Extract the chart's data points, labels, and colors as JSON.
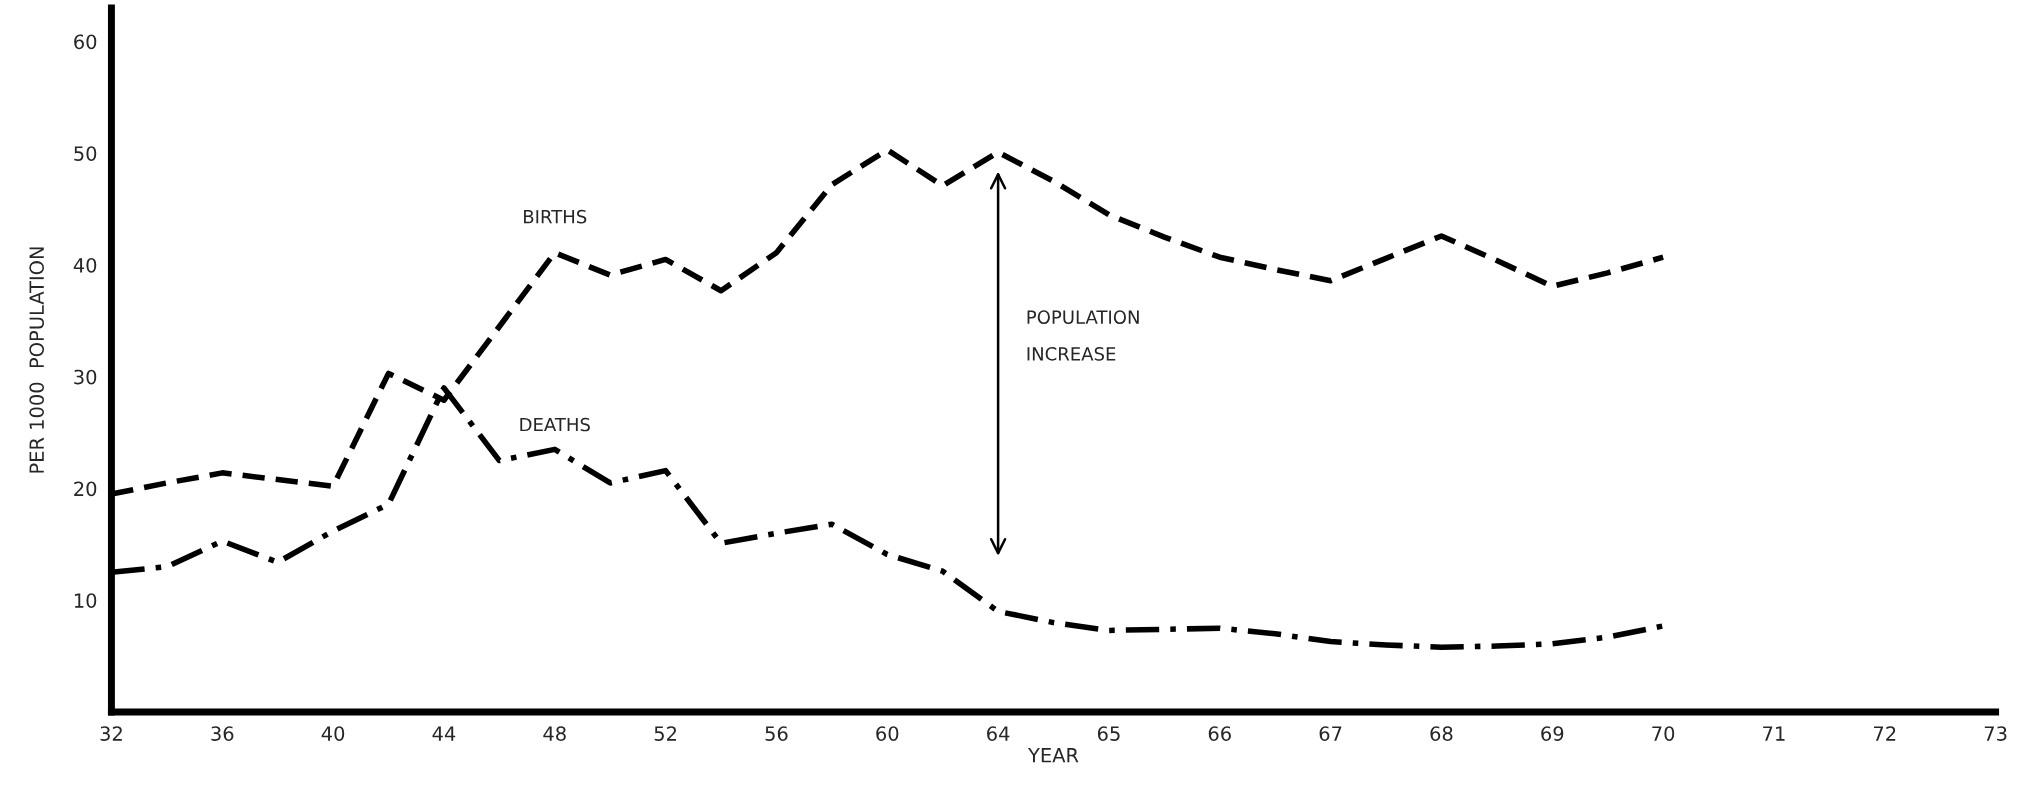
{
  "chart_data": {
    "type": "line",
    "xlabel": "YEAR",
    "ylabel": "PER 1000  POPULATION",
    "categories": [
      "32",
      null,
      "36",
      null,
      "40",
      null,
      "44",
      null,
      "48",
      null,
      "52",
      null,
      "56",
      null,
      "60",
      null,
      "64",
      null,
      "65",
      null,
      "66",
      null,
      "67",
      null,
      "68",
      null,
      "69",
      null,
      "70",
      null,
      "71",
      null,
      "72",
      null,
      "73"
    ],
    "ylim": [
      0,
      63
    ],
    "yticks": [
      10,
      20,
      30,
      40,
      50,
      60
    ],
    "series": [
      {
        "name": "BIRTHS",
        "color": "#000000",
        "line_style": "dashed",
        "values": [
          19.5,
          20.5,
          21.4,
          20.8,
          20.2,
          30.3,
          27.9,
          34.5,
          41.1,
          39.1,
          40.5,
          37.7,
          41.1,
          47.2,
          50.3,
          47.1,
          50.1,
          47.5,
          44.5,
          42.5,
          40.7,
          39.6,
          38.6,
          40.6,
          42.6,
          40.4,
          38.1,
          39.3,
          40.7,
          null,
          null,
          null,
          null,
          null,
          null
        ]
      },
      {
        "name": "DEATHS",
        "color": "#000000",
        "line_style": "dashdot",
        "values": [
          12.5,
          13.0,
          15.3,
          13.4,
          16.2,
          18.6,
          29.0,
          22.5,
          23.5,
          20.5,
          21.6,
          15.1,
          16.0,
          16.8,
          14.1,
          12.6,
          9.0,
          8.0,
          7.3,
          7.4,
          7.5,
          7.0,
          6.3,
          6.0,
          5.8,
          5.9,
          6.1,
          6.7,
          7.7,
          null,
          null,
          null,
          null,
          null,
          null
        ]
      }
    ],
    "annotations": [
      "POPULATION\nINCREASE"
    ],
    "grid": false,
    "legend": false
  }
}
